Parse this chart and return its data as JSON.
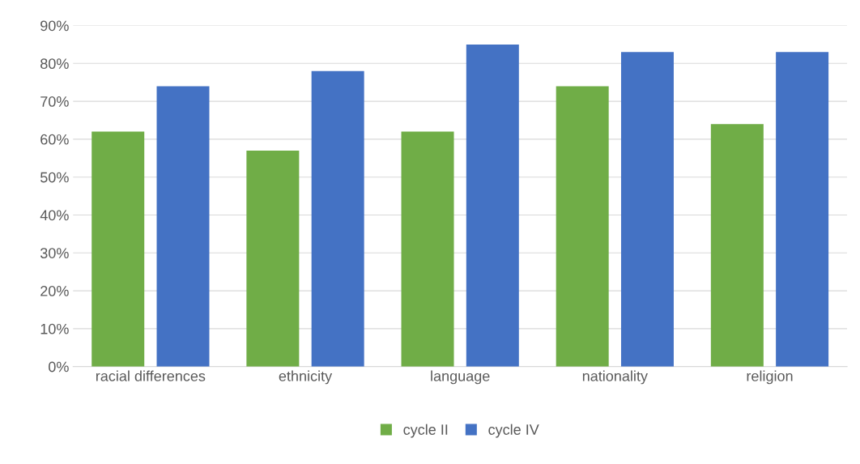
{
  "chart_data": {
    "type": "bar",
    "categories": [
      "racial differences",
      "ethnicity",
      "language",
      "nationality",
      "religion"
    ],
    "series": [
      {
        "name": "cycle II",
        "color": "#70ad47",
        "values": [
          62,
          57,
          62,
          74,
          64
        ]
      },
      {
        "name": "cycle IV",
        "color": "#4472c4",
        "values": [
          74,
          78,
          85,
          83,
          83
        ]
      }
    ],
    "ylim": [
      0,
      90
    ],
    "yticks": [
      {
        "value": 0,
        "label": "0%"
      },
      {
        "value": 10,
        "label": "10%"
      },
      {
        "value": 20,
        "label": "20%"
      },
      {
        "value": 30,
        "label": "30%"
      },
      {
        "value": 40,
        "label": "40%"
      },
      {
        "value": 50,
        "label": "50%"
      },
      {
        "value": 60,
        "label": "60%"
      },
      {
        "value": 70,
        "label": "70%"
      },
      {
        "value": 80,
        "label": "80%"
      },
      {
        "value": 90,
        "label": "90%"
      }
    ],
    "grid": "y",
    "legend": "bottom"
  }
}
